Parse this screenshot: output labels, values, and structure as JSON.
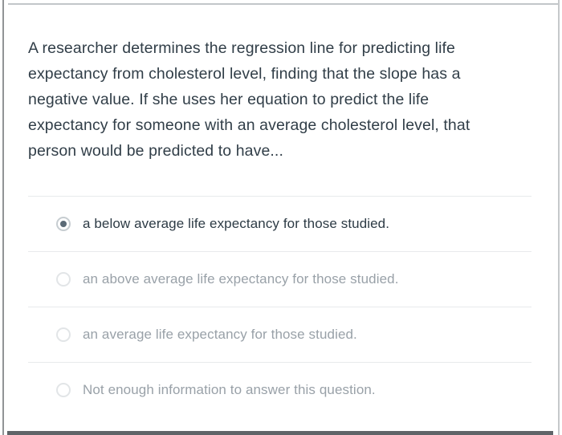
{
  "colors": {
    "question_text": "#313E48",
    "selected_option_text": "#2D3B45",
    "unselected_option_text": "#99A1A8",
    "divider": "#E8EAEC",
    "radio_ring_selected": "#C7CDD1",
    "radio_ring_unselected": "#E2E5E7",
    "radio_dot": "#5B6A76",
    "left_edge": "#919496",
    "bottom_bar": "#5F6468"
  },
  "question": {
    "text": "A researcher determines the regression line for predicting life expectancy from cholesterol level, finding that the slope has a negative value. If she uses her equation to predict the life expectancy for someone with an average cholesterol level, that person would be predicted to have...",
    "lines": [
      "A researcher determines the regression line for predicting life",
      "expectancy from cholesterol level, finding that the slope has a",
      "negative value. If she uses her equation to predict the life",
      "expectancy for someone with an average cholesterol level, that",
      "person would be predicted to have..."
    ]
  },
  "options": [
    {
      "label": "a below average life expectancy for those studied.",
      "selected": true
    },
    {
      "label": "an above average life expectancy for those studied.",
      "selected": false
    },
    {
      "label": "an average life expectancy for those studied.",
      "selected": false
    },
    {
      "label": "Not enough information to answer this question.",
      "selected": false
    }
  ]
}
